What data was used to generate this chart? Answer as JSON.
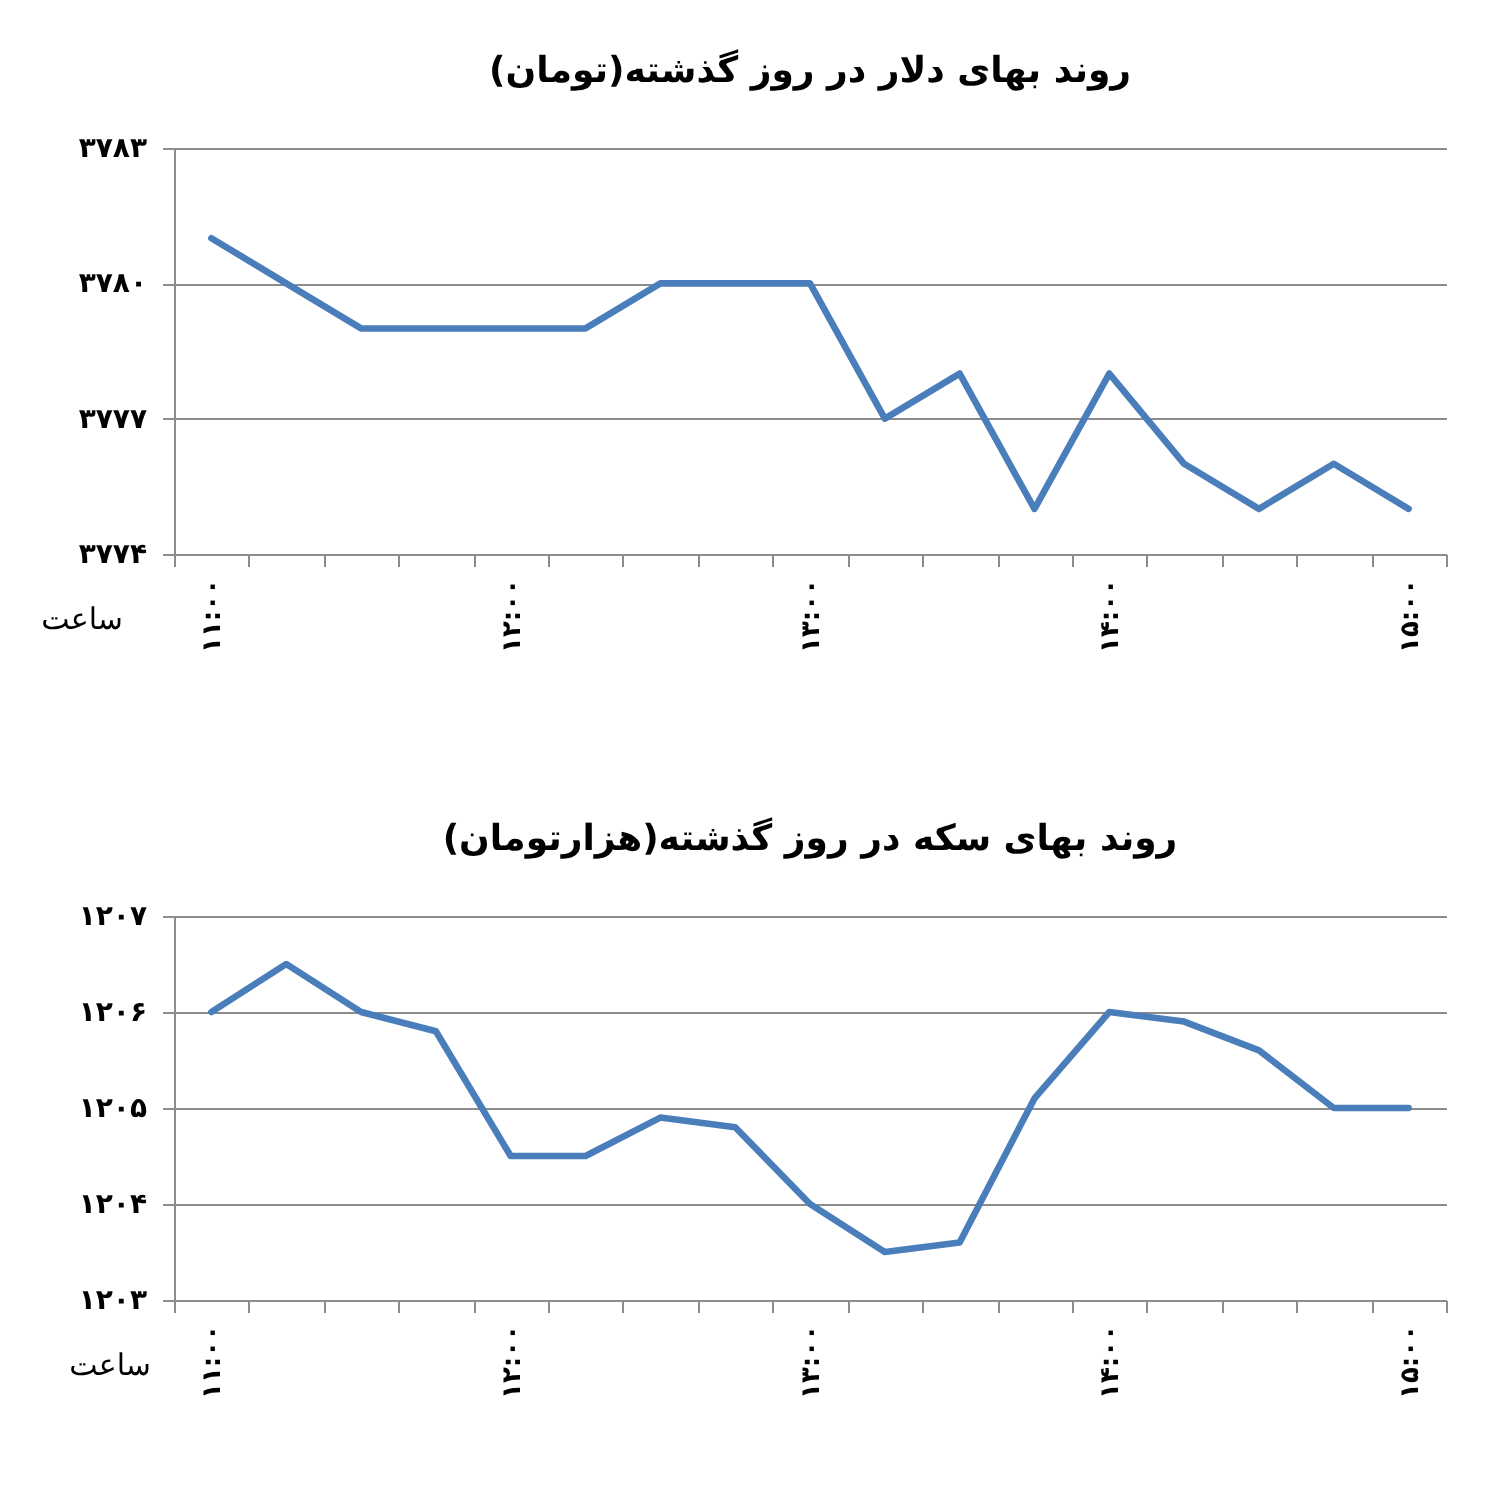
{
  "chart_data": [
    {
      "type": "line",
      "title": "روند بهای دلار در روز گذشته(تومان)",
      "xlabel": "ساعت",
      "grid": "y",
      "line_style": "solid",
      "categories": [
        "۱۱:۰۰",
        null,
        null,
        null,
        "۱۲:۰۰",
        null,
        null,
        null,
        "۱۳:۰۰",
        null,
        null,
        null,
        "۱۴:۰۰",
        null,
        null,
        null,
        "۱۵:۰۰"
      ],
      "series": [
        {
          "color": "#4a7ebb",
          "values": [
            3781,
            3780,
            3779,
            3779,
            3779,
            3779,
            3780,
            3780,
            3780,
            3777,
            3778,
            3775,
            3778,
            3776,
            3775,
            3776,
            3775
          ]
        }
      ],
      "ylim": [
        3774,
        3783
      ],
      "yticks": [
        {
          "value": 3774,
          "label": "۳۷۷۴"
        },
        {
          "value": 3777,
          "label": "۳۷۷۷"
        },
        {
          "value": 3780,
          "label": "۳۷۸۰"
        },
        {
          "value": 3783,
          "label": "۳۷۸۳"
        }
      ]
    },
    {
      "type": "line",
      "title": "روند بهای سکه در روز گذشته(هزارتومان)",
      "xlabel": "ساعت",
      "grid": "y",
      "line_style": "solid",
      "categories": [
        "۱۱:۰۰",
        null,
        null,
        null,
        "۱۲:۰۰",
        null,
        null,
        null,
        "۱۳:۰۰",
        null,
        null,
        null,
        "۱۴:۰۰",
        null,
        null,
        null,
        "۱۵:۰۰"
      ],
      "series": [
        {
          "color": "#4a7ebb",
          "values": [
            1206,
            1206.5,
            1206,
            1205.8,
            1204.5,
            1204.5,
            1204.9,
            1204.8,
            1204,
            1203.5,
            1203.6,
            1205.1,
            1206,
            1205.9,
            1205.6,
            1205,
            1205
          ]
        }
      ],
      "ylim": [
        1203,
        1207
      ],
      "yticks": [
        {
          "value": 1203,
          "label": "۱۲۰۳"
        },
        {
          "value": 1204,
          "label": "۱۲۰۴"
        },
        {
          "value": 1205,
          "label": "۱۲۰۵"
        },
        {
          "value": 1206,
          "label": "۱۲۰۶"
        },
        {
          "value": 1207,
          "label": "۱۲۰۷"
        }
      ]
    }
  ]
}
